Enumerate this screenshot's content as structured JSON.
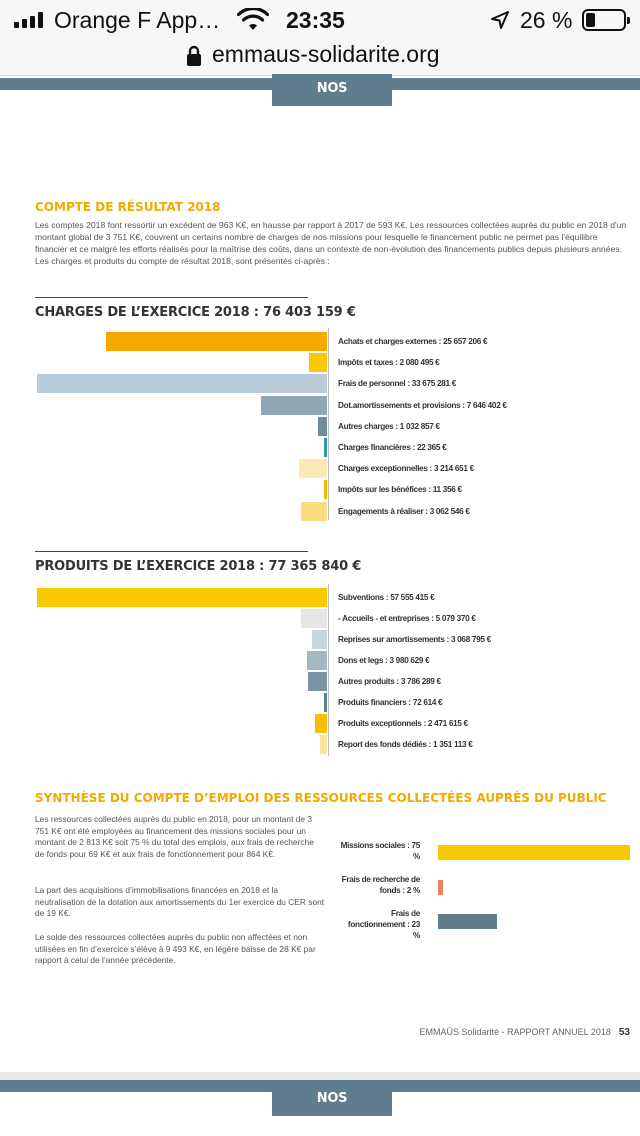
{
  "status_bar": {
    "carrier": "Orange F App…",
    "time": "23:35",
    "battery_percent": "26 %",
    "battery_level": 0.26
  },
  "browser": {
    "url": "emmaus-solidarite.org"
  },
  "header": {
    "tab_label": "NOS RESSOURCES"
  },
  "compte": {
    "title": "COMPTE DE RÉSULTAT 2018",
    "intro": "Les comptes 2018 font ressortir un excédent de 963 K€, en hausse par rapport à 2017 de 593 K€. Les ressources collectées auprès du public en 2018 d'un montant global de 3 751 K€, couvrent un certains nombre de charges de nos missions pour lesquelle le financement public ne permet pas l'équilibre financier et ce malgré les efforts réalisés pour la maîtrise des coûts, dans un contexte de non-évolution des financements publics depuis plusieurs années. Les charges et produits du compte de résultat 2018, sont présentés ci-après :"
  },
  "charges": {
    "title": "CHARGES DE L’EXERCICE 2018 : 76 403 159 €",
    "items": [
      {
        "label": "Achats et charges externes : 25 657 206 €",
        "value": 25657206,
        "color": "#f5a800"
      },
      {
        "label": "Impôts et taxes : 2 080 495 €",
        "value": 2080495,
        "color": "#f8c800"
      },
      {
        "label": "Frais de personnel : 33 675 281 €",
        "value": 33675281,
        "color": "#b9cbd8"
      },
      {
        "label": "Dot.amortissements et provisions : 7 646 402 €",
        "value": 7646402,
        "color": "#8ea7b5"
      },
      {
        "label": "Autres charges : 1 032 857 €",
        "value": 1032857,
        "color": "#6f8c9c"
      },
      {
        "label": "Charges financières : 22 365 €",
        "value": 22365,
        "color": "#2f9ba0"
      },
      {
        "label": "Charges exceptionnelles : 3 214 651 €",
        "value": 3214651,
        "color": "#fce8b8"
      },
      {
        "label": "Impôts sur les bénéfices : 11 356 €",
        "value": 11356,
        "color": "#f5b800"
      },
      {
        "label": "Engagements à réaliser : 3 062 546 €",
        "value": 3062546,
        "color": "#fbdc80"
      }
    ]
  },
  "produits": {
    "title": "PRODUITS DE L’EXERCICE 2018 : 77 365 840 €",
    "items": [
      {
        "label": "Subventions : 57 555 415 €",
        "value": 57555415,
        "color": "#f8c800"
      },
      {
        "label": "- Accueils - et entreprises : 5 079 370 €",
        "value": 5079370,
        "color": "#e6e6e6"
      },
      {
        "label": "Reprises sur amortissements : 3 068 795 €",
        "value": 3068795,
        "color": "#c8d6de"
      },
      {
        "label": "Dons et legs : 3 980 629 €",
        "value": 3980629,
        "color": "#a4b8c4"
      },
      {
        "label": "Autres produits : 3 786 289 €",
        "value": 3786289,
        "color": "#7a96a6"
      },
      {
        "label": "Produits financiers : 72 614 €",
        "value": 72614,
        "color": "#5f7d8e"
      },
      {
        "label": "Produits exceptionnels : 2 471 615 €",
        "value": 2471615,
        "color": "#f5c000"
      },
      {
        "label": "Report des fonds dédiés : 1 351 113 €",
        "value": 1351113,
        "color": "#fbe49a"
      }
    ]
  },
  "synthese": {
    "title": "SYNTHÈSE DU COMPTE D’EMPLOI DES RESSOURCES COLLECTÉES AUPRÈS DU PUBLIC",
    "paragraphs": [
      "Les ressources collectées auprès du public en 2018, pour un montant de 3 751 K€ ont été employées au financement des missions sociales pour un montant de 2 813 K€ soit 75 % du total des emplois, aux frais de recherche de fonds pour 69 K€ et aux frais de fonctionnement pour 864 K€.",
      "La part des acquisitions d’immobilisations financées en 2018 et la neutralisation de la dotation aux amortissements du 1er exercice du CER sont de 19 K€.",
      "Le solde des ressources collectées auprès du public non affectées et non utilisées en fin d’exercice s’élève à 9 493 K€, en légère baisse de 28 K€ par rapport à celui de l’année précédente."
    ],
    "bars": [
      {
        "label": "Missions sociales : 75 %",
        "percent": 75,
        "color": "#f8c800"
      },
      {
        "label": "Frais de recherche de fonds : 2 %",
        "percent": 2,
        "color": "#f08060"
      },
      {
        "label": "Frais de fonctionnement : 23 %",
        "percent": 23,
        "color": "#5f7d8e"
      }
    ]
  },
  "footer": {
    "text": "EMMAÜS Solidarité  - RAPPORT ANNUEL 2018",
    "page": "53"
  }
}
